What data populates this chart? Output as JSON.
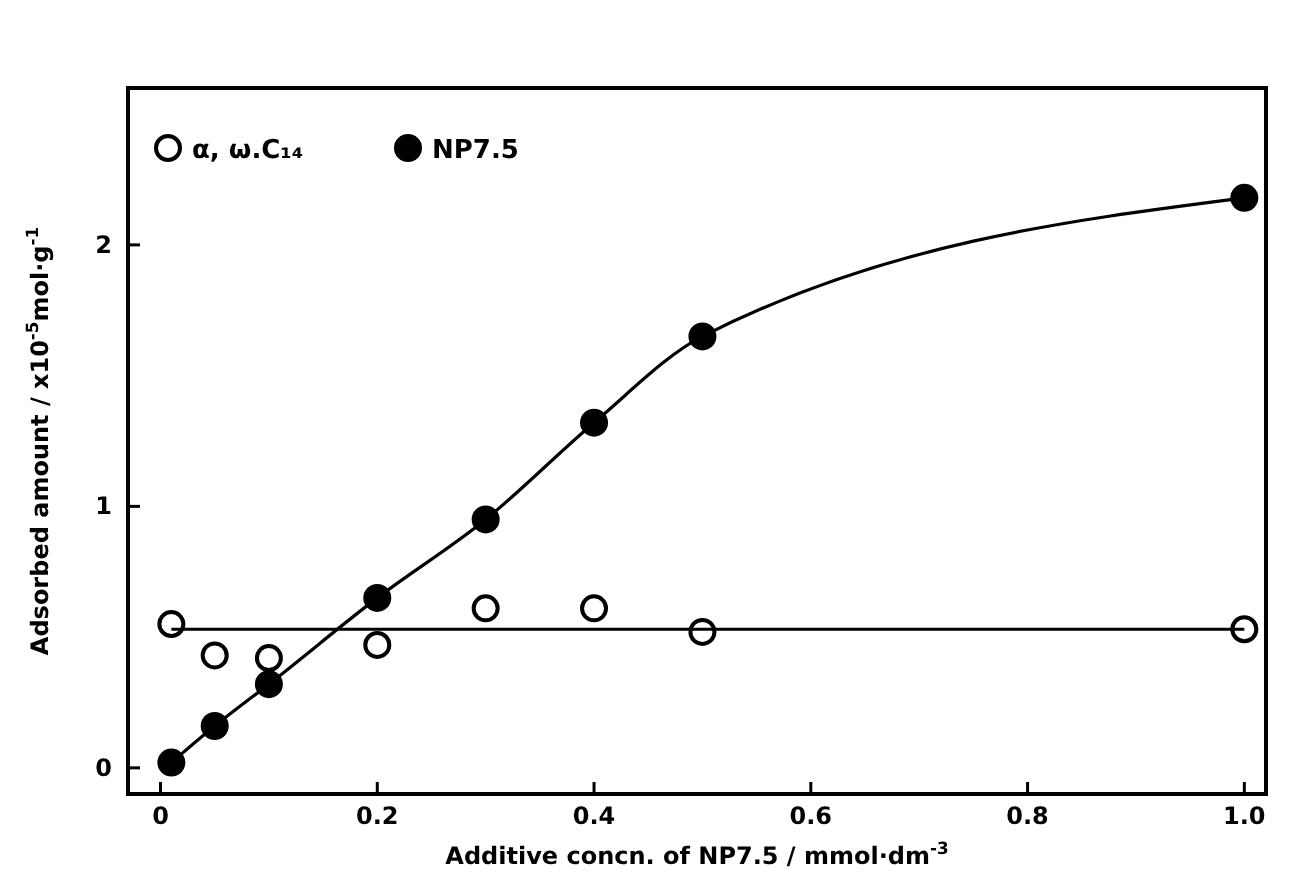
{
  "chart_data": {
    "type": "scatter",
    "xlabel": "Additive concn. of NP7.5 / mmol·dm$^{-3}$",
    "ylabel": "Adsorbed amount / x10$^{-5}$mol·g$^{-1}$",
    "x": [
      0.01,
      0.05,
      0.1,
      0.2,
      0.3,
      0.4,
      0.5,
      1.0
    ],
    "series": [
      {
        "name": "α, ω.C₁₄",
        "color": "#ffffff",
        "values": [
          0.55,
          0.43,
          0.42,
          0.47,
          0.61,
          0.61,
          0.52,
          0.53
        ]
      },
      {
        "name": "NP7.5",
        "type": "line",
        "color": "#000000",
        "values": [
          0.02,
          0.16,
          0.32,
          0.65,
          0.95,
          1.32,
          1.65,
          2.18
        ]
      },
      {
        "type": "line",
        "color": "#000000",
        "marker": "none",
        "x": [
          0.01,
          1.0
        ],
        "values": [
          0.53,
          0.53
        ]
      }
    ],
    "xlim": [
      -0.03,
      1.02
    ],
    "ylim": [
      -0.1,
      2.6
    ],
    "xticks": [
      0,
      0.2,
      0.4,
      0.6,
      0.8,
      {
        "value": 1.0,
        "label": "1.0"
      }
    ],
    "yticks": [
      0,
      1,
      2
    ],
    "marker": "circle",
    "legend": "top left",
    "grid": false
  }
}
